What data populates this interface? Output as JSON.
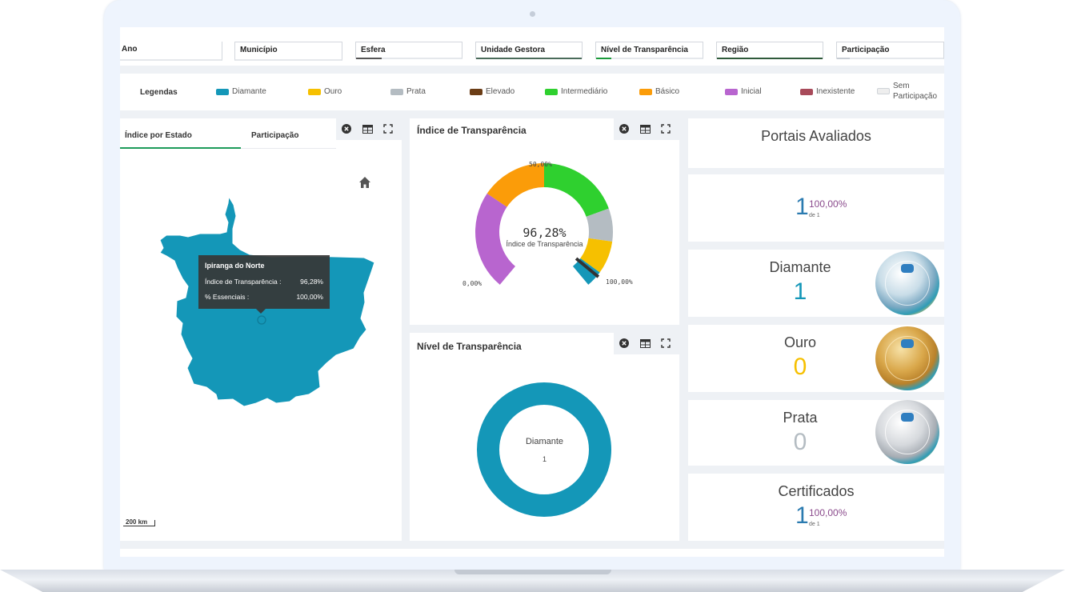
{
  "filters": [
    {
      "label": "Ano"
    },
    {
      "label": "Município"
    },
    {
      "label": "Esfera"
    },
    {
      "label": "Unidade Gestora"
    },
    {
      "label": "Nível de Transparência"
    },
    {
      "label": "Região"
    },
    {
      "label": "Participação"
    }
  ],
  "legend": {
    "title": "Legendas",
    "items": [
      {
        "label": "Diamante",
        "color": "#1497b8"
      },
      {
        "label": "Ouro",
        "color": "#f6c000"
      },
      {
        "label": "Prata",
        "color": "#b4bcc2"
      },
      {
        "label": "Elevado",
        "color": "#6b3d16"
      },
      {
        "label": "Intermediário",
        "color": "#2fd02f"
      },
      {
        "label": "Básico",
        "color": "#fb9c09"
      },
      {
        "label": "Inicial",
        "color": "#b865cf"
      },
      {
        "label": "Inexistente",
        "color": "#a84a5a"
      },
      {
        "label": "Sem Participação",
        "label_line1": "Sem",
        "label_line2": "Participação",
        "color": "#eeeeee"
      }
    ]
  },
  "map_panel": {
    "tabs": [
      {
        "label": "Índice por Estado",
        "active": true
      },
      {
        "label": "Participação",
        "active": false
      }
    ],
    "tooltip": {
      "title": "Ipiranga do Norte",
      "rows": [
        {
          "label": "Índice de Transparência :",
          "value": "96,28%"
        },
        {
          "label": "% Essenciais :",
          "value": "100,00%"
        }
      ]
    },
    "scale": "200 km",
    "icons": [
      "close-circle-icon",
      "table-icon",
      "fullscreen-icon",
      "home-icon"
    ]
  },
  "gauge_panel": {
    "title": "Índice de Transparência",
    "value_label": "96,28%",
    "caption": "Índice de Transparência",
    "tick_min": "0,00%",
    "tick_mid": "50,00%",
    "tick_max": "100,00%",
    "needle_value": 96.28
  },
  "donut_panel": {
    "title": "Nível de Transparência",
    "center_label": "Diamante",
    "center_value": "1"
  },
  "cards": {
    "portais": {
      "title": "Portais Avaliados"
    },
    "total": {
      "value": "1",
      "pct": "100,00%",
      "de": "de 1"
    },
    "diamante": {
      "title": "Diamante",
      "value": "1",
      "color": "#1497b8"
    },
    "ouro": {
      "title": "Ouro",
      "value": "0",
      "color": "#f6c000"
    },
    "prata": {
      "title": "Prata",
      "value": "0",
      "color": "#b4bcc2"
    },
    "certificados": {
      "title": "Certificados",
      "value": "1",
      "pct": "100,00%",
      "de": "de 1"
    }
  },
  "chart_data": [
    {
      "type": "gauge",
      "title": "Índice de Transparência",
      "value": 96.28,
      "range": [
        0,
        100
      ],
      "bands": [
        {
          "from": 0,
          "to": 30,
          "color": "#b865cf"
        },
        {
          "from": 30,
          "to": 50,
          "color": "#fb9c09"
        },
        {
          "from": 50,
          "to": 75,
          "color": "#2fd02f"
        },
        {
          "from": 75,
          "to": 85,
          "color": "#b4bcc2"
        },
        {
          "from": 85,
          "to": 95,
          "color": "#f6c000"
        },
        {
          "from": 95,
          "to": 100,
          "color": "#1497b8"
        }
      ]
    },
    {
      "type": "pie",
      "title": "Nível de Transparência",
      "categories": [
        "Diamante"
      ],
      "values": [
        1
      ],
      "colors": [
        "#1497b8"
      ]
    }
  ]
}
